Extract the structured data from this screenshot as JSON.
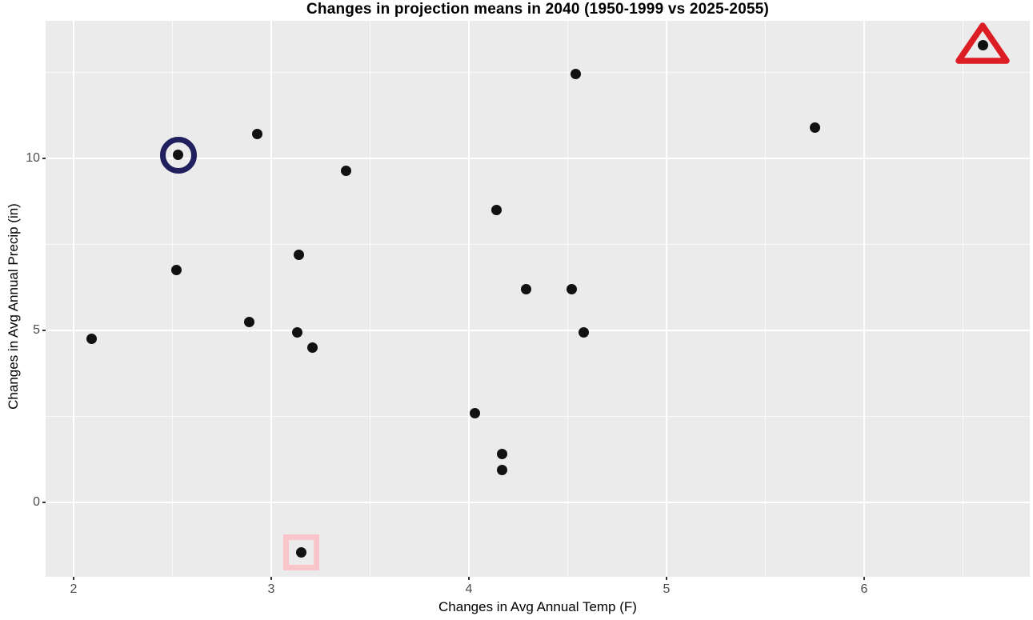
{
  "title": "Changes in projection means in 2040 (1950-1999 vs 2025-2055)",
  "chart_data": {
    "type": "scatter",
    "title": "Changes in projection means in 2040 (1950-1999 vs 2025-2055)",
    "xlabel": "Changes in Avg Annual Temp (F)",
    "ylabel": "Changes in Avg Annual Precip (in)",
    "xlim": [
      1.86,
      6.84
    ],
    "ylim": [
      -2.17,
      14.02
    ],
    "x_ticks": [
      {
        "value": 2,
        "label": "2"
      },
      {
        "value": 3,
        "label": "3"
      },
      {
        "value": 4,
        "label": "4"
      },
      {
        "value": 5,
        "label": "5"
      },
      {
        "value": 6,
        "label": "6"
      }
    ],
    "y_ticks": [
      {
        "value": 0,
        "label": "0"
      },
      {
        "value": 5,
        "label": "5"
      },
      {
        "value": 10,
        "label": "10"
      }
    ],
    "x_minor_ticks": [
      2.5,
      3.5,
      4.5,
      5.5,
      6.5
    ],
    "y_minor_ticks": [
      2.5,
      7.5,
      12.5
    ],
    "grid": "white major and minor gridlines on gray panel",
    "legend_position": "none",
    "panel_bg": "#ebebeb",
    "point_color": "#111111",
    "points": [
      {
        "x": 2.09,
        "y": 4.75
      },
      {
        "x": 2.52,
        "y": 6.75
      },
      {
        "x": 2.53,
        "y": 10.1
      },
      {
        "x": 2.89,
        "y": 5.25
      },
      {
        "x": 2.93,
        "y": 10.7
      },
      {
        "x": 3.13,
        "y": 4.95
      },
      {
        "x": 3.14,
        "y": 7.2
      },
      {
        "x": 3.15,
        "y": -1.45
      },
      {
        "x": 3.21,
        "y": 4.5
      },
      {
        "x": 3.38,
        "y": 9.65
      },
      {
        "x": 4.03,
        "y": 2.6
      },
      {
        "x": 4.14,
        "y": 8.5
      },
      {
        "x": 4.17,
        "y": 1.4
      },
      {
        "x": 4.17,
        "y": 0.95
      },
      {
        "x": 4.29,
        "y": 6.2
      },
      {
        "x": 4.52,
        "y": 6.2
      },
      {
        "x": 4.54,
        "y": 12.45
      },
      {
        "x": 4.58,
        "y": 4.95
      },
      {
        "x": 5.75,
        "y": 10.9
      },
      {
        "x": 6.6,
        "y": 13.3
      }
    ],
    "annotations": [
      {
        "shape": "circle-outline",
        "x": 2.53,
        "y": 10.1,
        "color": "#20205f"
      },
      {
        "shape": "square-outline",
        "x": 3.15,
        "y": -1.45,
        "color": "#f9c5ca"
      },
      {
        "shape": "triangle-outline",
        "x": 6.6,
        "y": 13.3,
        "color": "#dc1d24"
      }
    ]
  }
}
